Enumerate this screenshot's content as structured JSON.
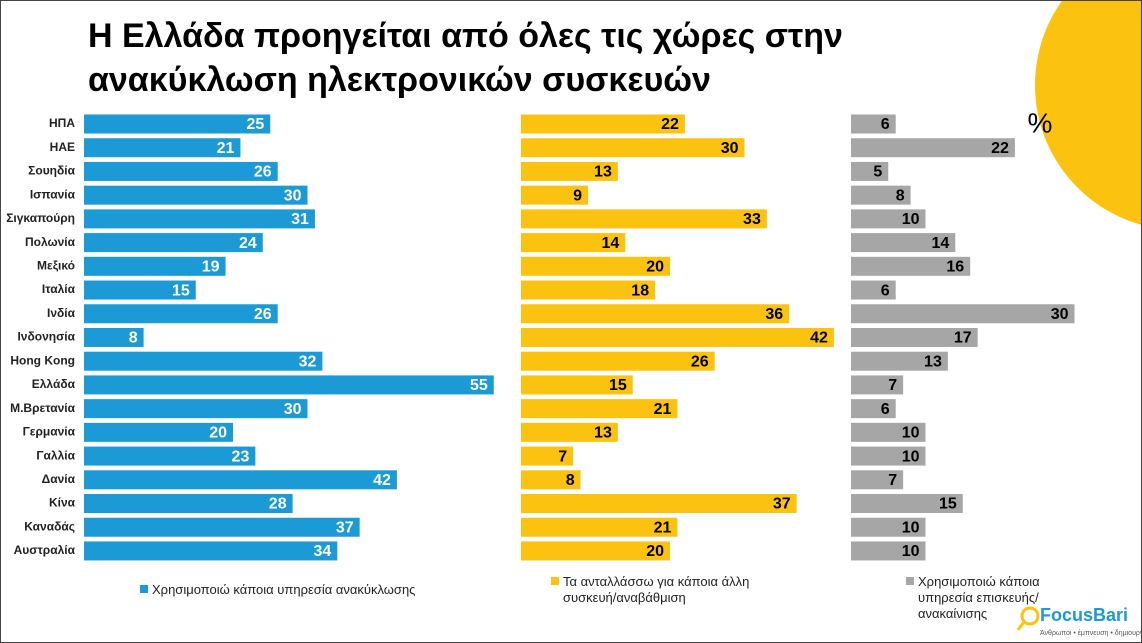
{
  "chart_data": {
    "type": "bar",
    "orientation": "horizontal",
    "title_lines": [
      "Η Ελλάδα προηγείται από όλες τις χώρες στην",
      "ανακύκλωση ηλεκτρονικών συσκευών"
    ],
    "unit_label": "%",
    "categories": [
      "ΗΠΑ",
      "ΗΑΕ",
      "Σουηδία",
      "Ισπανία",
      "Σιγκαπούρη",
      "Πολωνία",
      "Μεξικό",
      "Ιταλία",
      "Ινδία",
      "Ινδονησία",
      "Hong Kong",
      "Ελλάδα",
      "Μ.Βρετανία",
      "Γερμανία",
      "Γαλλία",
      "Δανία",
      "Κίνα",
      "Καναδάς",
      "Αυστραλία"
    ],
    "series": [
      {
        "name": "Χρησιμοποιώ κάποια υπηρεσία ανακύκλωσης",
        "color": "#1b9ad6",
        "label_color": "#ffffff",
        "values": [
          25,
          21,
          26,
          30,
          31,
          24,
          19,
          15,
          26,
          8,
          32,
          55,
          30,
          20,
          23,
          42,
          28,
          37,
          34
        ]
      },
      {
        "name": "Τα ανταλλάσσω για κάποια άλλη συσκευή/αναβάθμιση",
        "color": "#fbc30f",
        "label_color": "#000000",
        "values": [
          22,
          30,
          13,
          9,
          33,
          14,
          20,
          18,
          36,
          42,
          26,
          15,
          21,
          13,
          7,
          8,
          37,
          21,
          20
        ]
      },
      {
        "name": "Χρησιμοποιώ κάποια υπηρεσία επισκευής/ανακαίνισης",
        "color": "#a6a6a6",
        "label_color": "#000000",
        "values": [
          6,
          22,
          5,
          8,
          10,
          14,
          16,
          6,
          30,
          17,
          13,
          7,
          6,
          10,
          10,
          7,
          15,
          10,
          10
        ]
      }
    ],
    "logo": "FocusBari",
    "logo_tagline": "Άνθρωποι • έμπνευση • δημιουργία"
  }
}
